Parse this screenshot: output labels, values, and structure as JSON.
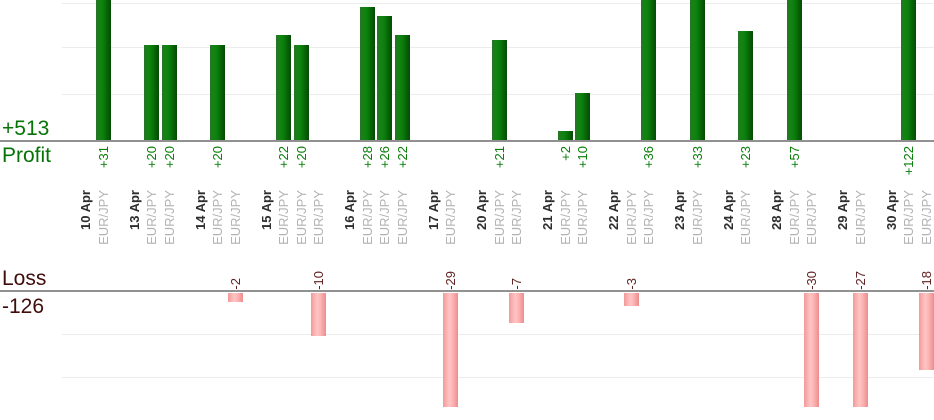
{
  "chart_data": {
    "type": "bar",
    "description": "Daily trade profit/loss report, one bar per trade, grouped by date",
    "profit": {
      "total_label": "+513",
      "axis_label": "Profit",
      "total": 513
    },
    "loss": {
      "axis_label": "Loss",
      "total_label": "-126",
      "total": -126
    },
    "gridlines": {
      "profit_values": [
        10,
        20,
        30
      ],
      "loss_values": [
        -10,
        -20
      ]
    },
    "ylim_profit": [
      0,
      30
    ],
    "ylim_loss": [
      -27,
      0
    ],
    "groups": [
      {
        "date": "10 Apr",
        "trades": [
          {
            "pair": "EUR/JPY",
            "label": "+31",
            "value": 31
          }
        ]
      },
      {
        "date": "13 Apr",
        "trades": [
          {
            "pair": "EUR/JPY",
            "label": "+20",
            "value": 20
          },
          {
            "pair": "EUR/JPY",
            "label": "+20",
            "value": 20
          }
        ]
      },
      {
        "date": "14 Apr",
        "trades": [
          {
            "pair": "EUR/JPY",
            "label": "+20",
            "value": 20
          },
          {
            "pair": "EUR/JPY",
            "label": "-2",
            "value": -2
          }
        ]
      },
      {
        "date": "15 Apr",
        "trades": [
          {
            "pair": "EUR/JPY",
            "label": "+22",
            "value": 22
          },
          {
            "pair": "EUR/JPY",
            "label": "+20",
            "value": 20
          },
          {
            "pair": "EUR/JPY",
            "label": "-10",
            "value": -10
          }
        ]
      },
      {
        "date": "16 Apr",
        "trades": [
          {
            "pair": "EUR/JPY",
            "label": "+28",
            "value": 28
          },
          {
            "pair": "EUR/JPY",
            "label": "+26",
            "value": 26
          },
          {
            "pair": "EUR/JPY",
            "label": "+22",
            "value": 22
          }
        ]
      },
      {
        "date": "17 Apr",
        "trades": [
          {
            "pair": "EUR/JPY",
            "label": "-29",
            "value": -29
          }
        ]
      },
      {
        "date": "20 Apr",
        "trades": [
          {
            "pair": "EUR/JPY",
            "label": "+21",
            "value": 21
          },
          {
            "pair": "EUR/JPY",
            "label": "-7",
            "value": -7
          }
        ]
      },
      {
        "date": "21 Apr",
        "trades": [
          {
            "pair": "EUR/JPY",
            "label": "+2",
            "value": 2
          },
          {
            "pair": "EUR/JPY",
            "label": "+10",
            "value": 10
          }
        ]
      },
      {
        "date": "22 Apr",
        "trades": [
          {
            "pair": "EUR/JPY",
            "label": "-3",
            "value": -3
          },
          {
            "pair": "EUR/JPY",
            "label": "+36",
            "value": 36
          }
        ]
      },
      {
        "date": "23 Apr",
        "trades": [
          {
            "pair": "EUR/JPY",
            "label": "+33",
            "value": 33
          }
        ]
      },
      {
        "date": "24 Apr",
        "trades": [
          {
            "pair": "EUR/JPY",
            "label": "+23",
            "value": 23
          }
        ]
      },
      {
        "date": "28 Apr",
        "trades": [
          {
            "pair": "EUR/JPY",
            "label": "+57",
            "value": 57
          },
          {
            "pair": "EUR/JPY",
            "label": "-30",
            "value": -30
          }
        ]
      },
      {
        "date": "29 Apr",
        "trades": [
          {
            "pair": "EUR/JPY",
            "label": "-27",
            "value": -27
          }
        ]
      },
      {
        "date": "30 Apr",
        "trades": [
          {
            "pair": "EUR/JPY",
            "label": "+122",
            "value": 122
          },
          {
            "pair": "EUR/JPY",
            "label": "-18",
            "value": -18
          }
        ]
      }
    ],
    "colors": {
      "profit_bar": "#0b7c0b",
      "loss_bar": "#ffb6b6",
      "profit_text": "#087d08",
      "profit_text_big": "#077307",
      "loss_text": "#602222",
      "loss_text_big": "#400c0c",
      "date_text": "#2e2e2e",
      "pair_text": "#b3b3b3",
      "baseline": "#919191",
      "gridline": "#ececec"
    }
  }
}
